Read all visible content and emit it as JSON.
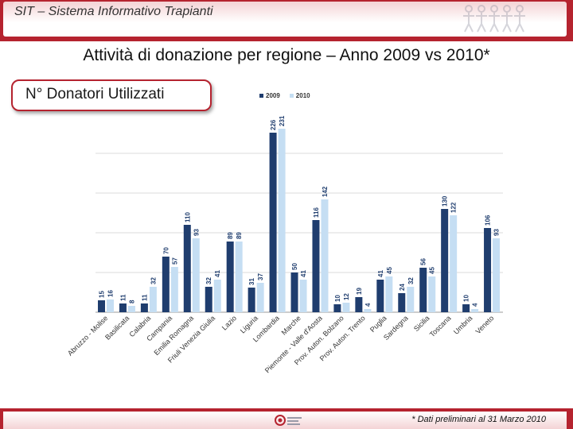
{
  "header": {
    "app_title": "SIT – Sistema Informativo Trapianti",
    "logo_icon": "people-chain-icon"
  },
  "page_title": "Attività di donazione per regione – Anno 2009 vs 2010*",
  "subtitle": "N° Donatori Utilizzati",
  "footer": {
    "note": "* Dati preliminari al 31 Marzo 2010",
    "logo_icon": "centro-nazionale-trapianti-logo-icon"
  },
  "colors": {
    "accent": "#b5232f",
    "series_2009": "#1f3d6e",
    "series_2010": "#c5def3"
  },
  "chart_data": {
    "type": "bar",
    "title": "N° Donatori Utilizzati",
    "xlabel": "",
    "ylabel": "",
    "ylim": [
      0,
      250
    ],
    "grid": true,
    "legend_position": "top",
    "categories": [
      "Abruzzo - Molise",
      "Basilicata",
      "Calabria",
      "Campania",
      "Emilia Romagna",
      "Friuli Venezia Giulia",
      "Lazio",
      "Liguria",
      "Lombardia",
      "Marche",
      "Piemonte - Valle d'Aosta",
      "Prov. Auton. Bolzano",
      "Prov. Auton. Trento",
      "Puglia",
      "Sardegna",
      "Sicilia",
      "Toscana",
      "Umbria",
      "Veneto"
    ],
    "series": [
      {
        "name": "2009",
        "values": [
          15,
          11,
          11,
          70,
          110,
          32,
          89,
          31,
          226,
          50,
          116,
          10,
          19,
          41,
          24,
          56,
          130,
          10,
          106
        ]
      },
      {
        "name": "2010",
        "values": [
          16,
          8,
          32,
          57,
          93,
          41,
          89,
          37,
          231,
          41,
          142,
          12,
          4,
          45,
          32,
          45,
          122,
          4,
          93
        ]
      }
    ]
  }
}
